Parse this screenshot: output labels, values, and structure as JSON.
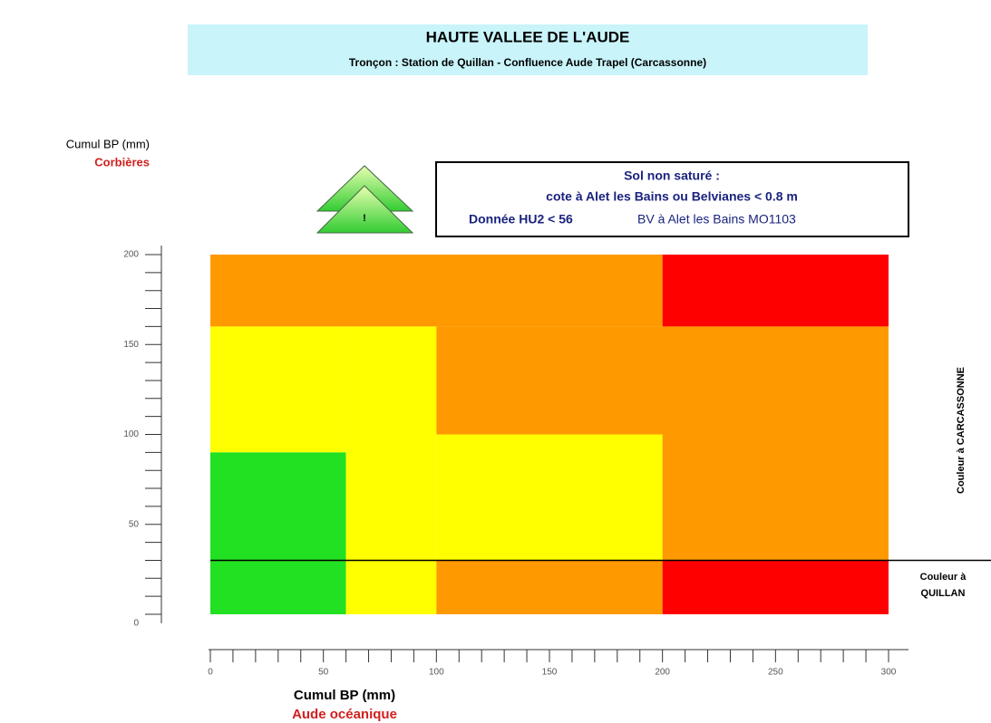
{
  "chart_data": {
    "type": "zones",
    "title": "HAUTE VALLEE DE L'AUDE",
    "subtitle": "Tronçon :   Station de Quillan - Confluence Aude Trapel (Carcassonne)",
    "ylabel": [
      "Cumul BP (mm)",
      "Corbières"
    ],
    "xlabel": [
      "Cumul BP (mm)",
      "Aude océanique"
    ],
    "info": {
      "lines": [
        "Sol non saturé :",
        "cote à Alet les Bains ou Belvianes < 0.8 m"
      ],
      "left": "Donnée HU2 < 56",
      "right": "BV à Alet les Bains MO1103"
    },
    "icon_text": "!",
    "right_label": "Couleur à CARCASSONNE",
    "bottom_right_label": [
      "Couleur à",
      "QUILLAN"
    ],
    "xlim": [
      0,
      300
    ],
    "ylim": [
      0,
      200
    ],
    "xticks": [
      0,
      50,
      100,
      150,
      200,
      250,
      300
    ],
    "yticks": [
      0,
      50,
      100,
      150,
      200
    ],
    "xminorticks": [
      0,
      10,
      20,
      30,
      40,
      50,
      60,
      70,
      80,
      90,
      100,
      110,
      120,
      130,
      140,
      150,
      160,
      170,
      180,
      190,
      200,
      210,
      220,
      230,
      240,
      250,
      260,
      270,
      280,
      290,
      300
    ],
    "yminorticks": [
      0,
      10,
      20,
      30,
      40,
      50,
      60,
      70,
      80,
      90,
      100,
      110,
      120,
      130,
      140,
      150,
      160,
      170,
      180,
      190,
      200
    ],
    "threshold": 30,
    "cells": [
      {
        "x": [
          0,
          200
        ],
        "y": [
          160,
          200
        ],
        "color": "#ff9900"
      },
      {
        "x": [
          200,
          300
        ],
        "y": [
          160,
          200
        ],
        "color": "#ff0000"
      },
      {
        "x": [
          0,
          60
        ],
        "y": [
          90,
          160
        ],
        "color": "#ffff00"
      },
      {
        "x": [
          0,
          60
        ],
        "y": [
          0,
          90
        ],
        "color": "#22e022"
      },
      {
        "x": [
          60,
          100
        ],
        "y": [
          0,
          160
        ],
        "color": "#ffff00"
      },
      {
        "x": [
          100,
          300
        ],
        "y": [
          100,
          160
        ],
        "color": "#ff9900"
      },
      {
        "x": [
          100,
          200
        ],
        "y": [
          30,
          100
        ],
        "color": "#ffff00"
      },
      {
        "x": [
          100,
          200
        ],
        "y": [
          0,
          30
        ],
        "color": "#ff9900"
      },
      {
        "x": [
          200,
          300
        ],
        "y": [
          30,
          100
        ],
        "color": "#ff9900"
      },
      {
        "x": [
          200,
          300
        ],
        "y": [
          0,
          30
        ],
        "color": "#ff0000"
      }
    ]
  }
}
